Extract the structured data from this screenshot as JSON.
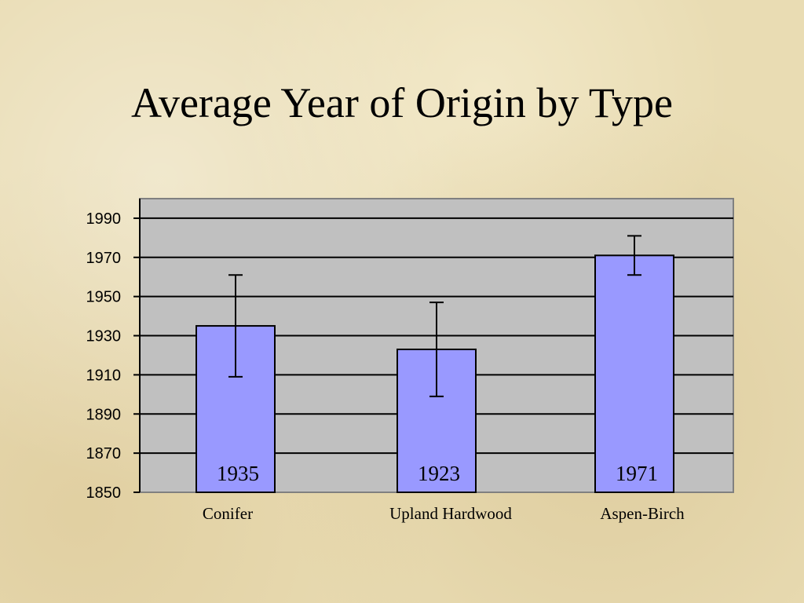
{
  "title": "Average Year of Origin by Type",
  "chart_data": {
    "type": "bar",
    "title": "Average Year of Origin by Type",
    "categories": [
      "Conifer",
      "Upland Hardwood",
      "Aspen-Birch"
    ],
    "values": [
      1935,
      1923,
      1971
    ],
    "error_low": [
      1909,
      1899,
      1961
    ],
    "error_high": [
      1961,
      1947,
      1981
    ],
    "data_labels": [
      "1935",
      "1923",
      "1971"
    ],
    "ylim": [
      1850,
      2000
    ],
    "yticks": [
      1850,
      1870,
      1890,
      1910,
      1930,
      1950,
      1970,
      1990
    ],
    "xlabel": "",
    "ylabel": "",
    "grid": true,
    "legend": "none",
    "colors": {
      "bar_fill": "#9999ff",
      "plot_background": "#c0c0c0",
      "gridline": "#000000"
    }
  }
}
